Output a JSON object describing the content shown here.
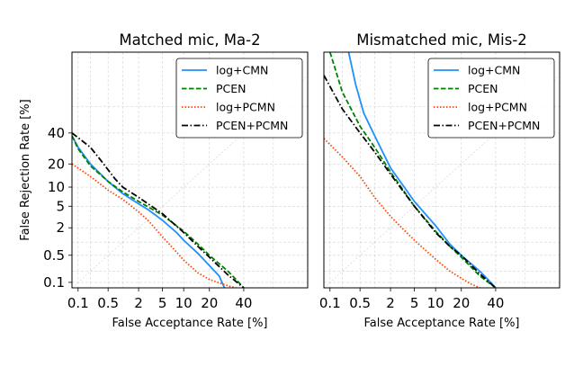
{
  "chart_data": [
    {
      "type": "line",
      "title": "Matched mic, Ma-2",
      "xlabel": "False Acceptance Rate [%]",
      "ylabel": "False Rejection Rate [%]",
      "xscale": "probit",
      "yscale": "probit",
      "xlim": [
        0.07,
        80
      ],
      "ylim": [
        0.07,
        90
      ],
      "xticks": [
        0.1,
        0.5,
        2,
        5,
        10,
        20,
        40
      ],
      "xticklabels": [
        "0.1",
        "0.5",
        "2",
        "5",
        "10",
        "20",
        "40"
      ],
      "yticks": [
        0.1,
        0.5,
        2,
        5,
        10,
        20,
        40
      ],
      "yticklabels": [
        "0.1",
        "0.5",
        "2",
        "5",
        "10",
        "20",
        "40"
      ],
      "grid": true,
      "legend": "top-right",
      "series": [
        {
          "name": "log+CMN",
          "color": "#1e90ff",
          "style": "solid",
          "x": [
            0.07,
            0.1,
            0.2,
            0.5,
            1,
            2,
            3,
            5,
            8,
            10,
            15,
            20,
            25,
            28
          ],
          "y": [
            38,
            30,
            20,
            12,
            8,
            5.5,
            4.3,
            2.8,
            1.6,
            1.1,
            0.55,
            0.28,
            0.15,
            0.07
          ]
        },
        {
          "name": "PCEN",
          "color": "#008000",
          "style": "dashed",
          "x": [
            0.07,
            0.1,
            0.2,
            0.5,
            1,
            2,
            5,
            10,
            15,
            20,
            30,
            35,
            40
          ],
          "y": [
            38,
            29,
            19,
            12,
            8.5,
            6,
            3.5,
            1.7,
            0.9,
            0.5,
            0.2,
            0.12,
            0.07
          ]
        },
        {
          "name": "log+PCMN",
          "color": "#ff4500",
          "style": "dotted",
          "x": [
            0.07,
            0.2,
            0.5,
            1,
            2,
            3,
            5,
            8,
            10,
            15,
            20,
            30,
            35
          ],
          "y": [
            20,
            14,
            9,
            6.5,
            4,
            2.7,
            1.3,
            0.6,
            0.38,
            0.18,
            0.12,
            0.08,
            0.07
          ]
        },
        {
          "name": "PCEN+PCMN",
          "color": "#000000",
          "style": "dashdot",
          "x": [
            0.07,
            0.2,
            0.4,
            0.7,
            1,
            2,
            5,
            10,
            15,
            20,
            30,
            40
          ],
          "y": [
            40,
            30,
            20,
            13,
            10,
            7,
            3.7,
            1.6,
            0.8,
            0.45,
            0.16,
            0.07
          ]
        }
      ]
    },
    {
      "type": "line",
      "title": "Mismatched mic, Mis-2",
      "xlabel": "False Acceptance Rate [%]",
      "ylabel": "",
      "xscale": "probit",
      "yscale": "probit",
      "xlim": [
        0.07,
        80
      ],
      "ylim": [
        0.07,
        90
      ],
      "xticks": [
        0.1,
        0.5,
        2,
        5,
        10,
        20,
        40
      ],
      "xticklabels": [
        "0.1",
        "0.5",
        "2",
        "5",
        "10",
        "20",
        "40"
      ],
      "yticks": [],
      "yticklabels": [],
      "grid": true,
      "legend": "top-right",
      "series": [
        {
          "name": "log+CMN",
          "color": "#1e90ff",
          "style": "solid",
          "x": [
            0.28,
            0.4,
            0.6,
            1,
            2,
            5,
            10,
            15,
            20,
            30,
            35,
            40
          ],
          "y": [
            90,
            75,
            55,
            38,
            18,
            6,
            2.2,
            0.9,
            0.5,
            0.2,
            0.12,
            0.07
          ]
        },
        {
          "name": "PCEN",
          "color": "#008000",
          "style": "dashed",
          "x": [
            0.1,
            0.2,
            0.5,
            1,
            2,
            5,
            10,
            15,
            20,
            30,
            40
          ],
          "y": [
            90,
            70,
            45,
            30,
            16,
            5,
            1.7,
            0.8,
            0.45,
            0.15,
            0.07
          ]
        },
        {
          "name": "log+PCMN",
          "color": "#ff4500",
          "style": "dotted",
          "x": [
            0.07,
            0.2,
            0.5,
            1,
            2,
            3,
            5,
            10,
            15,
            20,
            25,
            30
          ],
          "y": [
            36,
            24,
            14,
            7,
            3.3,
            2.1,
            1.1,
            0.4,
            0.2,
            0.13,
            0.09,
            0.07
          ]
        },
        {
          "name": "PCEN+PCMN",
          "color": "#000000",
          "style": "dashdot",
          "x": [
            0.07,
            0.2,
            0.5,
            1,
            2,
            5,
            10,
            15,
            20,
            30,
            40
          ],
          "y": [
            80,
            58,
            40,
            27,
            15,
            5,
            1.6,
            0.8,
            0.5,
            0.17,
            0.07
          ]
        }
      ]
    }
  ]
}
